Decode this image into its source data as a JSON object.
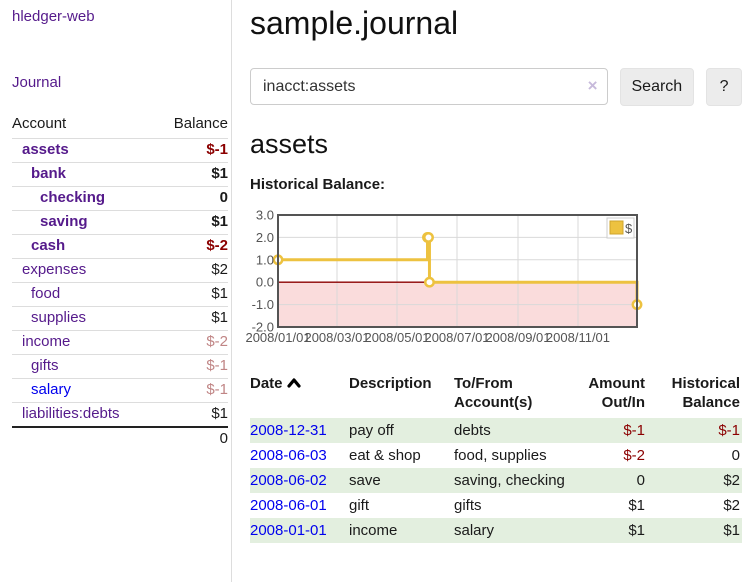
{
  "colors": {
    "link_purple": "#551a8b",
    "link_blue": "#0000ee",
    "negative": "#8b0000",
    "negative_muted": "#c08585",
    "row_green": "#e3efdf",
    "chart_series_gold": "#edc240"
  },
  "icons": {
    "clear_search": "×"
  },
  "sidebar": {
    "brand": "hledger-web",
    "journal_link": "Journal",
    "accounts_table": {
      "headers": {
        "account": "Account",
        "balance": "Balance"
      },
      "rows": [
        {
          "name": "assets",
          "depth": 1,
          "bold": true,
          "balance": "$-1",
          "balance_color": "negative",
          "link": "purple"
        },
        {
          "name": "bank",
          "depth": 2,
          "bold": true,
          "balance": "$1",
          "balance_color": "normal",
          "link": "purple"
        },
        {
          "name": "checking",
          "depth": 3,
          "bold": true,
          "balance": "0",
          "balance_color": "normal",
          "link": "purple"
        },
        {
          "name": "saving",
          "depth": 3,
          "bold": true,
          "balance": "$1",
          "balance_color": "normal",
          "link": "purple"
        },
        {
          "name": "cash",
          "depth": 2,
          "bold": true,
          "balance": "$-2",
          "balance_color": "negative",
          "link": "purple"
        },
        {
          "name": "expenses",
          "depth": 1,
          "bold": false,
          "balance": "$2",
          "balance_color": "normal",
          "link": "purple"
        },
        {
          "name": "food",
          "depth": 2,
          "bold": false,
          "balance": "$1",
          "balance_color": "normal",
          "link": "purple"
        },
        {
          "name": "supplies",
          "depth": 2,
          "bold": false,
          "balance": "$1",
          "balance_color": "normal",
          "link": "purple"
        },
        {
          "name": "income",
          "depth": 1,
          "bold": false,
          "balance": "$-2",
          "balance_color": "negative-muted",
          "link": "purple"
        },
        {
          "name": "gifts",
          "depth": 2,
          "bold": false,
          "balance": "$-1",
          "balance_color": "negative-muted",
          "link": "purple"
        },
        {
          "name": "salary",
          "depth": 2,
          "bold": false,
          "balance": "$-1",
          "balance_color": "negative-muted",
          "link": "blue"
        },
        {
          "name": "liabilities:debts",
          "depth": 1,
          "bold": false,
          "balance": "$1",
          "balance_color": "normal",
          "link": "purple"
        }
      ],
      "total": "0"
    }
  },
  "header": {
    "title": "sample.journal"
  },
  "search": {
    "query": "inacct:assets",
    "button_label": "Search",
    "help_label": "?"
  },
  "account_page": {
    "heading": "assets",
    "chart_label": "Historical Balance:"
  },
  "chart_data": {
    "type": "line",
    "title": "Historical Balance",
    "step": true,
    "series": [
      {
        "name": "$",
        "color": "#edc240",
        "points": [
          {
            "x": "2008-01-01",
            "y": 1
          },
          {
            "x": "2008-06-01",
            "y": 2
          },
          {
            "x": "2008-06-02",
            "y": 2
          },
          {
            "x": "2008-06-03",
            "y": 0
          },
          {
            "x": "2008-12-31",
            "y": -1
          }
        ]
      }
    ],
    "xlim": [
      "2008-01-01",
      "2008-12-31"
    ],
    "ylim": [
      -2,
      3
    ],
    "x_ticks": [
      "2008/01/01",
      "2008/03/01",
      "2008/05/01",
      "2008/07/01",
      "2008/09/01",
      "2008/11/01"
    ],
    "y_ticks": [
      "3.0",
      "2.0",
      "1.0",
      "0.0",
      "-1.0",
      "-2.0"
    ],
    "grid": true,
    "legend_position": "top-right",
    "zero_line_color": "#8b0000",
    "negative_region_fill": "#fadcdc",
    "axis_label_color": "#545454",
    "border_color": "#545454"
  },
  "register_table": {
    "headers": {
      "date": "Date",
      "description": "Description",
      "accounts": "To/From Account(s)",
      "amount": "Amount Out/In",
      "balance": "Historical Balance"
    },
    "sort": {
      "column": "date",
      "direction": "ascending"
    },
    "rows": [
      {
        "date": "2008-12-31",
        "description": "pay off",
        "accounts": "debts",
        "amount": "$-1",
        "amount_color": "negative",
        "balance": "$-1",
        "balance_color": "negative"
      },
      {
        "date": "2008-06-03",
        "description": "eat & shop",
        "accounts": "food, supplies",
        "amount": "$-2",
        "amount_color": "negative",
        "balance": "0",
        "balance_color": "normal"
      },
      {
        "date": "2008-06-02",
        "description": "save",
        "accounts": "saving, checking",
        "amount": "0",
        "amount_color": "normal",
        "balance": "$2",
        "balance_color": "normal"
      },
      {
        "date": "2008-06-01",
        "description": "gift",
        "accounts": "gifts",
        "amount": "$1",
        "amount_color": "normal",
        "balance": "$2",
        "balance_color": "normal"
      },
      {
        "date": "2008-01-01",
        "description": "income",
        "accounts": "salary",
        "amount": "$1",
        "amount_color": "normal",
        "balance": "$1",
        "balance_color": "normal"
      }
    ]
  }
}
